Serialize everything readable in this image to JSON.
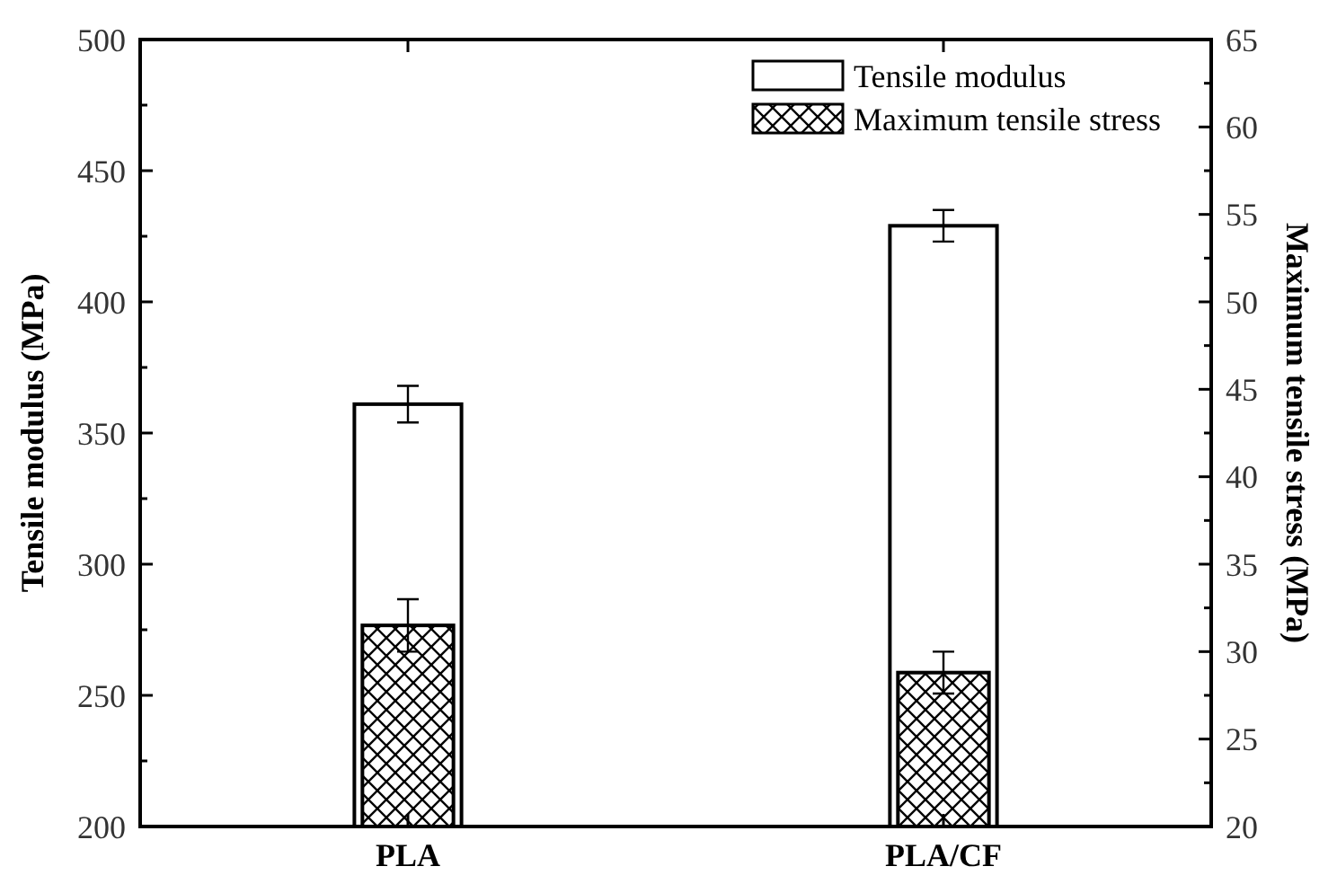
{
  "chart_data": {
    "type": "bar",
    "categories": [
      "PLA",
      "PLA/CF"
    ],
    "ylabel": "Tensile modulus (MPa)",
    "y2label": "Maximum tensile stress (MPa)",
    "series": [
      {
        "name": "Tensile modulus",
        "color": "#ffffff",
        "values": [
          361,
          429
        ],
        "errors": [
          7,
          6
        ]
      },
      {
        "name": "Maximum tensile stress",
        "color": "#000000",
        "axis": "y2",
        "values": [
          31.5,
          28.8
        ],
        "errors": [
          1.5,
          1.2
        ]
      }
    ],
    "ylim": [
      200,
      500
    ],
    "yticks": [
      200,
      {
        "value": 225,
        "label": null
      },
      250,
      {
        "value": 275,
        "label": null
      },
      300,
      {
        "value": 325,
        "label": null
      },
      350,
      {
        "value": 375,
        "label": null
      },
      400,
      {
        "value": 425,
        "label": null
      },
      450,
      {
        "value": 475,
        "label": null
      },
      500
    ],
    "y2lim": [
      20,
      65
    ],
    "y2ticks": [
      20,
      {
        "value": 22.5,
        "label": null
      },
      25,
      {
        "value": 27.5,
        "label": null
      },
      30,
      {
        "value": 32.5,
        "label": null
      },
      35,
      {
        "value": 37.5,
        "label": null
      },
      40,
      {
        "value": 42.5,
        "label": null
      },
      45,
      {
        "value": 47.5,
        "label": null
      },
      50,
      {
        "value": 52.5,
        "label": null
      },
      55,
      {
        "value": 57.5,
        "label": null
      },
      60,
      {
        "value": 62.5,
        "label": null
      },
      65
    ],
    "legend": "top right",
    "grid": false
  }
}
